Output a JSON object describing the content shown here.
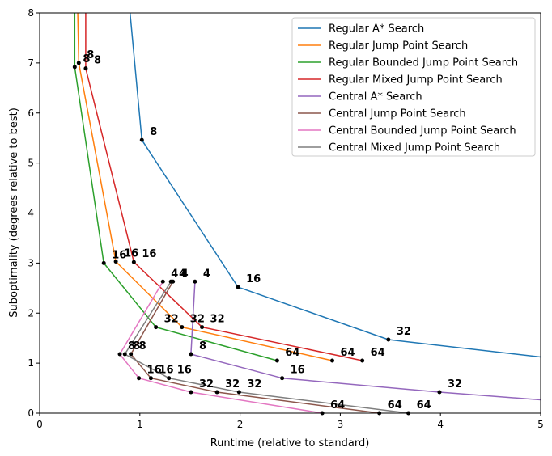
{
  "chart_data": {
    "type": "line",
    "title": "",
    "xlabel": "Runtime (relative to standard)",
    "ylabel": "Suboptimality (degrees relative to best)",
    "xlim": [
      0,
      5
    ],
    "ylim": [
      0,
      8
    ],
    "xticks": [
      "0",
      "1",
      "2",
      "3",
      "4",
      "5"
    ],
    "yticks": [
      "0",
      "1",
      "2",
      "3",
      "4",
      "5",
      "6",
      "7",
      "8"
    ],
    "grid": false,
    "legend_position": "top-right",
    "series": [
      {
        "name": "Regular A* Search",
        "color": "#1f77b4",
        "points": [
          [
            0.9,
            8.05
          ],
          [
            1.02,
            5.46
          ],
          [
            1.98,
            2.52
          ],
          [
            3.48,
            1.47
          ],
          [
            5.1,
            1.1
          ]
        ],
        "markers": [
          [
            1.02,
            5.46,
            "8"
          ],
          [
            1.98,
            2.52,
            "16"
          ],
          [
            3.48,
            1.47,
            "32"
          ]
        ]
      },
      {
        "name": "Regular Jump Point Search",
        "color": "#ff7f0e",
        "points": [
          [
            0.38,
            8.05
          ],
          [
            0.39,
            7.0
          ],
          [
            0.76,
            3.03
          ],
          [
            1.42,
            1.72
          ],
          [
            2.92,
            1.05
          ]
        ],
        "markers": [
          [
            0.39,
            7.0,
            "8"
          ],
          [
            0.76,
            3.03,
            "16"
          ],
          [
            1.42,
            1.72,
            "32"
          ],
          [
            2.92,
            1.05,
            "64"
          ]
        ]
      },
      {
        "name": "Regular Bounded Jump Point Search",
        "color": "#2ca02c",
        "points": [
          [
            0.35,
            8.05
          ],
          [
            0.35,
            6.92
          ],
          [
            0.64,
            3.0
          ],
          [
            1.16,
            1.72
          ],
          [
            2.37,
            1.05
          ]
        ],
        "markers": [
          [
            0.35,
            6.92,
            "8"
          ],
          [
            0.64,
            3.0,
            "16"
          ],
          [
            1.16,
            1.72,
            "32"
          ],
          [
            2.37,
            1.05,
            "64"
          ]
        ]
      },
      {
        "name": "Regular Mixed Jump Point Search",
        "color": "#d62728",
        "points": [
          [
            0.46,
            8.05
          ],
          [
            0.46,
            6.89
          ],
          [
            0.94,
            3.02
          ],
          [
            1.62,
            1.72
          ],
          [
            3.22,
            1.05
          ]
        ],
        "markers": [
          [
            0.46,
            6.89,
            "8"
          ],
          [
            0.94,
            3.02,
            "16"
          ],
          [
            1.62,
            1.72,
            "32"
          ],
          [
            3.22,
            1.05,
            "64"
          ]
        ]
      },
      {
        "name": "Central A* Search",
        "color": "#9467bd",
        "points": [
          [
            1.55,
            2.63
          ],
          [
            1.51,
            1.18
          ],
          [
            2.42,
            0.7
          ],
          [
            3.99,
            0.42
          ],
          [
            5.1,
            0.25
          ]
        ],
        "markers": [
          [
            1.55,
            2.63,
            "4"
          ],
          [
            1.51,
            1.18,
            "8"
          ],
          [
            2.42,
            0.7,
            "16"
          ],
          [
            3.99,
            0.42,
            "32"
          ]
        ]
      },
      {
        "name": "Central Jump Point Search",
        "color": "#8c564b",
        "points": [
          [
            1.33,
            2.63
          ],
          [
            0.91,
            1.18
          ],
          [
            1.11,
            0.7
          ],
          [
            1.77,
            0.42
          ],
          [
            3.39,
            0.0
          ]
        ],
        "markers": [
          [
            1.33,
            2.63,
            "4"
          ],
          [
            0.91,
            1.18,
            "8"
          ],
          [
            1.11,
            0.7,
            "16"
          ],
          [
            1.77,
            0.42,
            "32"
          ],
          [
            3.39,
            0.0,
            "64"
          ]
        ]
      },
      {
        "name": "Central Bounded Jump Point Search",
        "color": "#e377c2",
        "points": [
          [
            1.23,
            2.63
          ],
          [
            0.8,
            1.18
          ],
          [
            0.99,
            0.7
          ],
          [
            1.51,
            0.42
          ],
          [
            2.82,
            0.0
          ]
        ],
        "markers": [
          [
            1.23,
            2.63,
            "4"
          ],
          [
            0.8,
            1.18,
            "8"
          ],
          [
            0.99,
            0.7,
            "16"
          ],
          [
            1.51,
            0.42,
            "32"
          ],
          [
            2.82,
            0.0,
            "64"
          ]
        ]
      },
      {
        "name": "Central Mixed Jump Point Search",
        "color": "#7f7f7f",
        "points": [
          [
            1.31,
            2.63
          ],
          [
            0.85,
            1.18
          ],
          [
            1.29,
            0.7
          ],
          [
            1.99,
            0.42
          ],
          [
            3.68,
            0.0
          ]
        ],
        "markers": [
          [
            1.31,
            2.63,
            "4"
          ],
          [
            0.85,
            1.18,
            "8"
          ],
          [
            1.29,
            0.7,
            "16"
          ],
          [
            1.99,
            0.42,
            "32"
          ],
          [
            3.68,
            0.0,
            "64"
          ]
        ]
      }
    ]
  }
}
